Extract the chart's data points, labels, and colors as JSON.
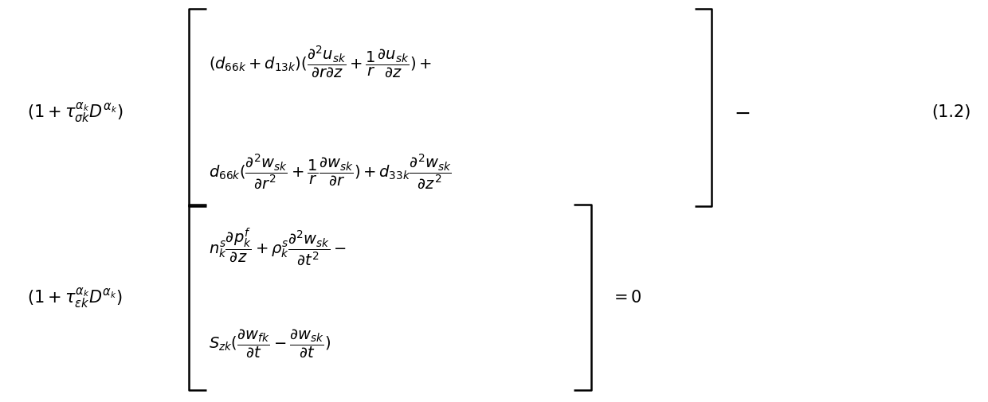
{
  "background_color": "#ffffff",
  "figsize": [
    12.4,
    5.06
  ],
  "dpi": 100,
  "equation_label": "(1.2)",
  "top_factor": "$(1+\\tau_{\\sigma k}^{\\alpha_k} D^{\\alpha_k})$",
  "bot_factor": "$(1+\\tau_{\\varepsilon k}^{\\alpha_k} D^{\\alpha_k})$",
  "top_line1": "$(d_{66k}+d_{13k})(\\dfrac{\\partial^2 u_{sk}}{\\partial r\\partial z}+\\dfrac{1}{r}\\dfrac{\\partial u_{sk}}{\\partial z})+$",
  "top_line2": "$d_{66k}(\\dfrac{\\partial^2 w_{sk}}{\\partial r^2}+\\dfrac{1}{r}\\dfrac{\\partial w_{sk}}{\\partial r})+d_{33k}\\dfrac{\\partial^2 w_{sk}}{\\partial z^2}$",
  "bot_line1": "$n_k^s\\dfrac{\\partial p_k^f}{\\partial z}+\\rho_k^s\\dfrac{\\partial^2 w_{sk}}{\\partial t^2}-$",
  "bot_line2": "$S_{zk}(\\dfrac{\\partial w_{fk}}{\\partial t}-\\dfrac{\\partial w_{sk}}{\\partial t})$",
  "minus_sign": "$-$",
  "equals_zero": "$=0$",
  "main_fs": 15,
  "inner_fs": 14
}
